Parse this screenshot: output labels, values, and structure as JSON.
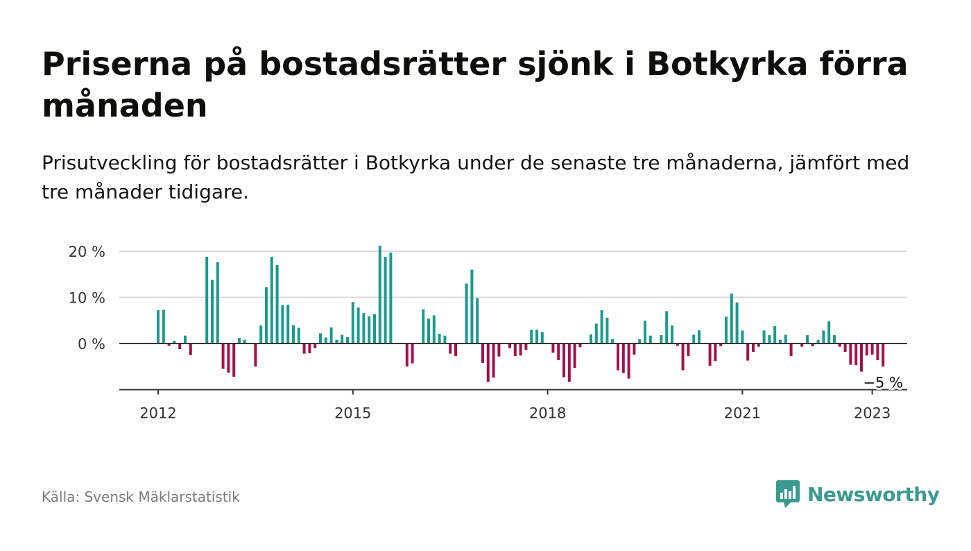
{
  "title": "Priserna på bostadsrätter sjönk i Botkyrka förra månaden",
  "subtitle": "Prisutveckling för bostadsrätter i Botkyrka under de senaste tre månaderna, jämfört med tre månader tidigare.",
  "source": "Källa: Svensk Mäklarstatistik",
  "brand": {
    "name": "Newsworthy"
  },
  "colors": {
    "positive": "#1a9a8f",
    "negative": "#a3124a",
    "grid": "#d9d9d9",
    "axis": "#333333",
    "brand": "#3a9a92"
  },
  "chart_data": {
    "type": "bar",
    "title": "",
    "xlabel": "",
    "ylabel": "",
    "start": "2012-01",
    "ylim": [
      -10,
      20
    ],
    "yticks": [
      {
        "value": 0,
        "label": "0 %"
      },
      {
        "value": 10,
        "label": "10 %"
      },
      {
        "value": 20,
        "label": "20 %"
      }
    ],
    "xticks": [
      {
        "year": 2012,
        "label": "2012"
      },
      {
        "year": 2015,
        "label": "2015"
      },
      {
        "year": 2018,
        "label": "2018"
      },
      {
        "year": 2021,
        "label": "2021"
      },
      {
        "year": 2023,
        "label": "2023"
      }
    ],
    "grid": true,
    "annotation": {
      "label": "−5 %",
      "target": "last"
    },
    "values": [
      7.2,
      7.3,
      -0.5,
      0.6,
      -1.2,
      1.7,
      -2.5,
      null,
      null,
      18.8,
      13.8,
      17.6,
      -5.5,
      -6.3,
      -7.2,
      1.2,
      0.8,
      null,
      -5.0,
      3.9,
      12.2,
      18.8,
      17.0,
      8.3,
      8.4,
      4.0,
      3.4,
      -2.2,
      -2.1,
      -1.0,
      2.2,
      1.3,
      3.5,
      0.8,
      1.9,
      1.4,
      9.0,
      7.8,
      6.6,
      5.9,
      6.4,
      21.2,
      18.8,
      19.7,
      null,
      null,
      -5.0,
      -4.3,
      null,
      7.4,
      5.4,
      6.1,
      2.1,
      1.7,
      -2.2,
      -2.7,
      null,
      13.0,
      16.0,
      9.8,
      -4.2,
      -8.3,
      -7.4,
      -2.8,
      null,
      -1.0,
      -2.7,
      -2.6,
      -1.4,
      3.0,
      3.0,
      2.5,
      null,
      -2.0,
      -3.6,
      -7.3,
      -8.3,
      -5.3,
      -0.8,
      null,
      2.0,
      4.3,
      7.2,
      5.6,
      1.0,
      -5.8,
      -6.4,
      -7.6,
      -2.4,
      0.9,
      4.9,
      1.7,
      null,
      1.8,
      7.0,
      3.9,
      -0.5,
      -5.8,
      -2.7,
      1.9,
      2.9,
      null,
      -4.8,
      -3.8,
      -0.6,
      5.8,
      10.8,
      8.9,
      2.8,
      -3.7,
      -1.8,
      -0.7,
      2.8,
      1.8,
      3.8,
      0.8,
      1.9,
      -2.7,
      null,
      -0.7,
      1.8,
      -0.6,
      0.8,
      2.8,
      4.8,
      1.8,
      -0.7,
      -1.8,
      -4.6,
      -4.7,
      -6.1,
      -2.6,
      -2.4,
      -3.6,
      -5.0
    ]
  }
}
